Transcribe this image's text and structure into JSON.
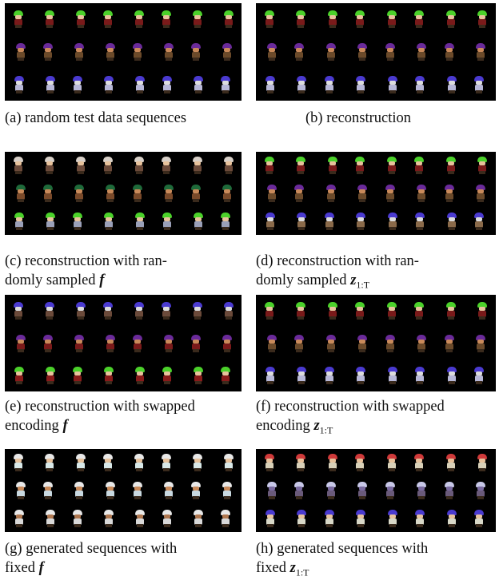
{
  "panels": [
    {
      "id": "a",
      "caption_lines": [
        "(a) random test data sequences"
      ],
      "rows": [
        {
          "hair": "#4bd12a",
          "face": "#e7c29c",
          "body": "#7a1a1a"
        },
        {
          "hair": "#6a2a9a",
          "face": "#c98a5a",
          "body": "#6b4a2a"
        },
        {
          "hair": "#4a3ad0",
          "face": "#dcdcdc",
          "body": "#b8b8d8"
        }
      ]
    },
    {
      "id": "b",
      "caption_lines": [
        "(b) reconstruction"
      ],
      "rows": [
        {
          "hair": "#4bd12a",
          "face": "#e7c29c",
          "body": "#7a1a1a"
        },
        {
          "hair": "#6a2a9a",
          "face": "#c98a5a",
          "body": "#6b4a2a"
        },
        {
          "hair": "#4a3ad0",
          "face": "#dcdcdc",
          "body": "#b8b8d8"
        }
      ]
    },
    {
      "id": "c",
      "caption_lines": [
        "(c) reconstruction with ran-",
        "domly sampled "
      ],
      "math": "f",
      "sub": "",
      "rows": [
        {
          "hair": "#d8d0c8",
          "face": "#e7c29c",
          "body": "#6b4a3a"
        },
        {
          "hair": "#1e6a3a",
          "face": "#c98a5a",
          "body": "#7a4a2a"
        },
        {
          "hair": "#4bd12a",
          "face": "#e7c29c",
          "body": "#9aa0b8"
        }
      ]
    },
    {
      "id": "d",
      "caption_lines": [
        "(d) reconstruction with ran-",
        "domly sampled "
      ],
      "math": "z",
      "sub": "1:T",
      "rows": [
        {
          "hair": "#4bd12a",
          "face": "#e7c29c",
          "body": "#7a1a1a"
        },
        {
          "hair": "#6a2a9a",
          "face": "#c98a5a",
          "body": "#6b4a2a"
        },
        {
          "hair": "#4a3ad0",
          "face": "#dcdcdc",
          "body": "#8a6a4a"
        }
      ]
    },
    {
      "id": "e",
      "caption_lines": [
        "(e) reconstruction with swapped",
        "encoding "
      ],
      "math": "f",
      "sub": "",
      "rows": [
        {
          "hair": "#4a3ad0",
          "face": "#dcdcdc",
          "body": "#6b4a3a"
        },
        {
          "hair": "#6a2a9a",
          "face": "#c98a5a",
          "body": "#7a1a1a"
        },
        {
          "hair": "#4bd12a",
          "face": "#e7c29c",
          "body": "#8a1a1a"
        }
      ]
    },
    {
      "id": "f",
      "caption_lines": [
        "(f) reconstruction with swapped",
        "encoding "
      ],
      "math": "z",
      "sub": "1:T",
      "rows": [
        {
          "hair": "#4bd12a",
          "face": "#e7c29c",
          "body": "#7a1a1a"
        },
        {
          "hair": "#6a2a9a",
          "face": "#c98a5a",
          "body": "#6b4a2a"
        },
        {
          "hair": "#4a3ad0",
          "face": "#dcdcdc",
          "body": "#b8b8d8"
        }
      ]
    },
    {
      "id": "g",
      "caption_lines": [
        "(g) generated sequences with",
        "fixed "
      ],
      "math": "f",
      "sub": "",
      "rows": [
        {
          "hair": "#e8e8e8",
          "face": "#e7c29c",
          "body": "#d8e8e8"
        },
        {
          "hair": "#e8e8e8",
          "face": "#c98a5a",
          "body": "#c8d8e0"
        },
        {
          "hair": "#e8e8e8",
          "face": "#b07850",
          "body": "#d8d8d8"
        }
      ]
    },
    {
      "id": "h",
      "caption_lines": [
        "(h) generated sequences with",
        "fixed "
      ],
      "math": "z",
      "sub": "1:T",
      "rows": [
        {
          "hair": "#d03a3a",
          "face": "#e7c29c",
          "body": "#d8d0b8"
        },
        {
          "hair": "#c8c8e8",
          "face": "#7a6aa0",
          "body": "#6a5a7a"
        },
        {
          "hair": "#4a3ad0",
          "face": "#e7c29c",
          "body": "#d8d8c8"
        }
      ]
    }
  ]
}
